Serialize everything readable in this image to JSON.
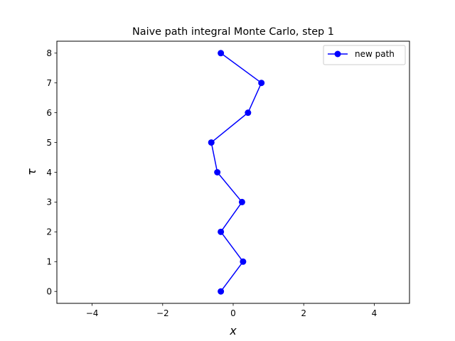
{
  "chart_data": {
    "type": "line",
    "title": "Naive path integral Monte Carlo, step 1",
    "xlabel": "x",
    "ylabel": "τ",
    "xlim": [
      -5,
      5
    ],
    "ylim": [
      -0.4,
      8.4
    ],
    "xticks": [
      -4,
      -2,
      0,
      2,
      4
    ],
    "xtick_labels": [
      "−4",
      "−2",
      "0",
      "2",
      "4"
    ],
    "yticks": [
      0,
      1,
      2,
      3,
      4,
      5,
      6,
      7,
      8
    ],
    "ytick_labels": [
      "0",
      "1",
      "2",
      "3",
      "4",
      "5",
      "6",
      "7",
      "8"
    ],
    "grid": false,
    "legend_position": "upper right",
    "series": [
      {
        "name": "new path",
        "color": "#0000ff",
        "marker": "circle",
        "x": [
          -0.35,
          0.28,
          -0.35,
          0.25,
          -0.45,
          -0.62,
          0.42,
          0.8,
          -0.35
        ],
        "y": [
          0,
          1,
          2,
          3,
          4,
          5,
          6,
          7,
          8
        ]
      }
    ]
  }
}
